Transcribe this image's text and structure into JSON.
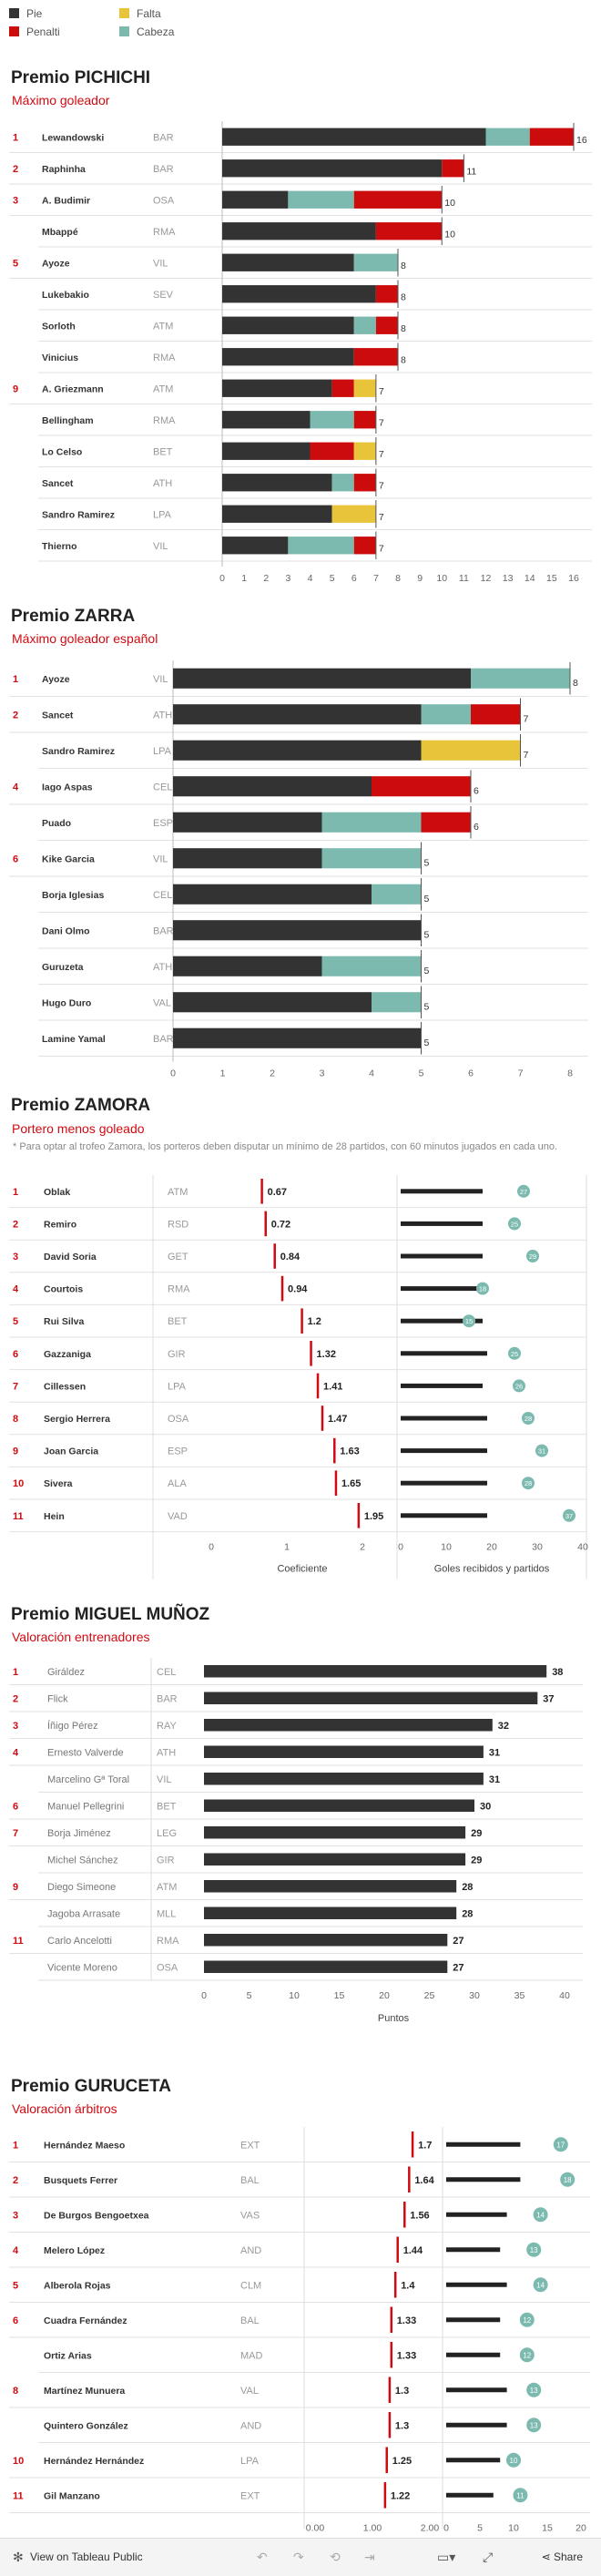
{
  "legend": {
    "items": [
      {
        "label": "Pie",
        "color": "#333333"
      },
      {
        "label": "Falta",
        "color": "#e8c43a"
      },
      {
        "label": "Penalti",
        "color": "#cc0c0c"
      },
      {
        "label": "Cabeza",
        "color": "#7cbab0"
      }
    ]
  },
  "colors": {
    "pie": "#333333",
    "falta": "#e8c43a",
    "penalti": "#cc0c0c",
    "cabeza": "#7cbab0",
    "accent": "#d10a11",
    "dot": "#7cbab0"
  },
  "pichichi": {
    "title": "Premio PICHICHI",
    "subtitle": "Máximo goleador"
  },
  "zarra": {
    "title": "Premio ZARRA",
    "subtitle": "Máximo goleador español"
  },
  "zamora": {
    "title": "Premio ZAMORA",
    "subtitle": "Portero menos goleado",
    "note": "* Para optar al trofeo Zamora, los porteros deben disputar un mínimo de 28 partidos, con 60 minutos jugados en cada uno."
  },
  "munoz": {
    "title": "Premio MIGUEL MUÑOZ",
    "subtitle": "Valoración entrenadores"
  },
  "guruceta": {
    "title": "Premio GURUCETA",
    "subtitle": "Valoración árbitros"
  },
  "footer": {
    "view_label": "View on Tableau Public",
    "share_label": "Share"
  },
  "chart_data": [
    {
      "id": "pichichi",
      "type": "bar",
      "stacked": true,
      "segments": [
        "Pie",
        "Cabeza",
        "Penalti",
        "Falta"
      ],
      "xlim": [
        0,
        16
      ],
      "xticks": [
        0,
        1,
        2,
        3,
        4,
        5,
        6,
        7,
        8,
        9,
        10,
        11,
        12,
        13,
        14,
        15,
        16
      ],
      "rows": [
        {
          "rank": "1",
          "name": "Lewandowski",
          "team": "BAR",
          "pie": 12,
          "cabeza": 2,
          "penalti": 2,
          "falta": 0,
          "total": 16
        },
        {
          "rank": "2",
          "name": "Raphinha",
          "team": "BAR",
          "pie": 10,
          "cabeza": 0,
          "penalti": 1,
          "falta": 0,
          "total": 11
        },
        {
          "rank": "3",
          "name": "A. Budimir",
          "team": "OSA",
          "pie": 3,
          "cabeza": 3,
          "penalti": 4,
          "falta": 0,
          "total": 10
        },
        {
          "rank": "",
          "name": "Mbappé",
          "team": "RMA",
          "pie": 7,
          "cabeza": 0,
          "penalti": 3,
          "falta": 0,
          "total": 10
        },
        {
          "rank": "5",
          "name": "Ayoze",
          "team": "VIL",
          "pie": 6,
          "cabeza": 2,
          "penalti": 0,
          "falta": 0,
          "total": 8
        },
        {
          "rank": "",
          "name": "Lukebakio",
          "team": "SEV",
          "pie": 7,
          "cabeza": 0,
          "penalti": 1,
          "falta": 0,
          "total": 8
        },
        {
          "rank": "",
          "name": "Sorloth",
          "team": "ATM",
          "pie": 6,
          "cabeza": 1,
          "penalti": 1,
          "falta": 0,
          "total": 8
        },
        {
          "rank": "",
          "name": "Vinicius",
          "team": "RMA",
          "pie": 6,
          "cabeza": 0,
          "penalti": 2,
          "falta": 0,
          "total": 8
        },
        {
          "rank": "9",
          "name": "A. Griezmann",
          "team": "ATM",
          "pie": 5,
          "cabeza": 0,
          "penalti": 1,
          "falta": 1,
          "total": 7
        },
        {
          "rank": "",
          "name": "Bellingham",
          "team": "RMA",
          "pie": 4,
          "cabeza": 2,
          "penalti": 1,
          "falta": 0,
          "total": 7
        },
        {
          "rank": "",
          "name": "Lo Celso",
          "team": "BET",
          "pie": 4,
          "cabeza": 0,
          "penalti": 2,
          "falta": 1,
          "total": 7
        },
        {
          "rank": "",
          "name": "Sancet",
          "team": "ATH",
          "pie": 5,
          "cabeza": 1,
          "penalti": 1,
          "falta": 0,
          "total": 7
        },
        {
          "rank": "",
          "name": "Sandro Ramirez",
          "team": "LPA",
          "pie": 5,
          "cabeza": 0,
          "penalti": 0,
          "falta": 2,
          "total": 7
        },
        {
          "rank": "",
          "name": "Thierno",
          "team": "VIL",
          "pie": 3,
          "cabeza": 3,
          "penalti": 1,
          "falta": 0,
          "total": 7
        }
      ]
    },
    {
      "id": "zarra",
      "type": "bar",
      "stacked": true,
      "segments": [
        "Pie",
        "Cabeza",
        "Penalti",
        "Falta"
      ],
      "xlim": [
        0,
        8
      ],
      "xticks": [
        0,
        1,
        2,
        3,
        4,
        5,
        6,
        7,
        8
      ],
      "rows": [
        {
          "rank": "1",
          "name": "Ayoze",
          "team": "VIL",
          "pie": 6,
          "cabeza": 2,
          "penalti": 0,
          "falta": 0,
          "total": 8
        },
        {
          "rank": "2",
          "name": "Sancet",
          "team": "ATH",
          "pie": 5,
          "cabeza": 1,
          "penalti": 1,
          "falta": 0,
          "total": 7
        },
        {
          "rank": "",
          "name": "Sandro Ramirez",
          "team": "LPA",
          "pie": 5,
          "cabeza": 0,
          "penalti": 0,
          "falta": 2,
          "total": 7
        },
        {
          "rank": "4",
          "name": "Iago Aspas",
          "team": "CEL",
          "pie": 4,
          "cabeza": 0,
          "penalti": 2,
          "falta": 0,
          "total": 6
        },
        {
          "rank": "",
          "name": "Puado",
          "team": "ESP",
          "pie": 3,
          "cabeza": 2,
          "penalti": 1,
          "falta": 0,
          "total": 6
        },
        {
          "rank": "6",
          "name": "Kike Garcia",
          "team": "VIL",
          "pie": 3,
          "cabeza": 2,
          "penalti": 0,
          "falta": 0,
          "total": 5
        },
        {
          "rank": "",
          "name": "Borja Iglesias",
          "team": "CEL",
          "pie": 4,
          "cabeza": 1,
          "penalti": 0,
          "falta": 0,
          "total": 5
        },
        {
          "rank": "",
          "name": "Dani Olmo",
          "team": "BAR",
          "pie": 5,
          "cabeza": 0,
          "penalti": 0,
          "falta": 0,
          "total": 5
        },
        {
          "rank": "",
          "name": "Guruzeta",
          "team": "ATH",
          "pie": 3,
          "cabeza": 2,
          "penalti": 0,
          "falta": 0,
          "total": 5
        },
        {
          "rank": "",
          "name": "Hugo Duro",
          "team": "VAL",
          "pie": 4,
          "cabeza": 1,
          "penalti": 0,
          "falta": 0,
          "total": 5
        },
        {
          "rank": "",
          "name": "Lamine Yamal",
          "team": "BAR",
          "pie": 5,
          "cabeza": 0,
          "penalti": 0,
          "falta": 0,
          "total": 5
        }
      ]
    },
    {
      "id": "zamora",
      "type": "scatter",
      "xlabel": "Coeficiente",
      "xlim": [
        0,
        2
      ],
      "xticks": [
        "0",
        "1",
        "2"
      ],
      "xlabel2": "Goles recibidos y partidos",
      "xlim2": [
        0,
        40
      ],
      "xticks2": [
        0,
        10,
        20,
        30,
        40
      ],
      "rows": [
        {
          "rank": "1",
          "name": "Oblak",
          "team": "ATM",
          "coef": 0.67,
          "coef_label": "0.67",
          "goals": 18,
          "matches": 27
        },
        {
          "rank": "2",
          "name": "Remiro",
          "team": "RSD",
          "coef": 0.72,
          "coef_label": "0.72",
          "goals": 18,
          "matches": 25
        },
        {
          "rank": "3",
          "name": "David Soria",
          "team": "GET",
          "coef": 0.84,
          "coef_label": "0.84",
          "goals": 18,
          "matches": 29
        },
        {
          "rank": "4",
          "name": "Courtois",
          "team": "RMA",
          "coef": 0.94,
          "coef_label": "0.94",
          "goals": 17,
          "matches": 18
        },
        {
          "rank": "5",
          "name": "Rui Silva",
          "team": "BET",
          "coef": 1.2,
          "coef_label": "1.2",
          "goals": 18,
          "matches": 15
        },
        {
          "rank": "6",
          "name": "Gazzaniga",
          "team": "GIR",
          "coef": 1.32,
          "coef_label": "1.32",
          "goals": 19,
          "matches": 25
        },
        {
          "rank": "7",
          "name": "Cillessen",
          "team": "LPA",
          "coef": 1.41,
          "coef_label": "1.41",
          "goals": 18,
          "matches": 26
        },
        {
          "rank": "8",
          "name": "Sergio Herrera",
          "team": "OSA",
          "coef": 1.47,
          "coef_label": "1.47",
          "goals": 19,
          "matches": 28
        },
        {
          "rank": "9",
          "name": "Joan Garcia",
          "team": "ESP",
          "coef": 1.63,
          "coef_label": "1.63",
          "goals": 19,
          "matches": 31
        },
        {
          "rank": "10",
          "name": "Sivera",
          "team": "ALA",
          "coef": 1.65,
          "coef_label": "1.65",
          "goals": 19,
          "matches": 28
        },
        {
          "rank": "11",
          "name": "Hein",
          "team": "VAD",
          "coef": 1.95,
          "coef_label": "1.95",
          "goals": 19,
          "matches": 37
        }
      ]
    },
    {
      "id": "munoz",
      "type": "bar",
      "xlabel": "Puntos",
      "xlim": [
        0,
        40
      ],
      "xticks": [
        0,
        5,
        10,
        15,
        20,
        25,
        30,
        35,
        40
      ],
      "rows": [
        {
          "rank": "1",
          "name": "Giráldez",
          "team": "CEL",
          "value": 38
        },
        {
          "rank": "2",
          "name": "Flick",
          "team": "BAR",
          "value": 37
        },
        {
          "rank": "3",
          "name": "Íñigo Pérez",
          "team": "RAY",
          "value": 32
        },
        {
          "rank": "4",
          "name": "Ernesto Valverde",
          "team": "ATH",
          "value": 31
        },
        {
          "rank": "",
          "name": "Marcelino Gª Toral",
          "team": "VIL",
          "value": 31
        },
        {
          "rank": "6",
          "name": "Manuel Pellegrini",
          "team": "BET",
          "value": 30
        },
        {
          "rank": "7",
          "name": "Borja Jiménez",
          "team": "LEG",
          "value": 29
        },
        {
          "rank": "",
          "name": "Michel Sánchez",
          "team": "GIR",
          "value": 29
        },
        {
          "rank": "9",
          "name": "Diego Simeone",
          "team": "ATM",
          "value": 28
        },
        {
          "rank": "",
          "name": "Jagoba Arrasate",
          "team": "MLL",
          "value": 28
        },
        {
          "rank": "11",
          "name": "Carlo Ancelotti",
          "team": "RMA",
          "value": 27
        },
        {
          "rank": "",
          "name": "Vicente Moreno",
          "team": "OSA",
          "value": 27
        }
      ]
    },
    {
      "id": "guruceta",
      "type": "scatter",
      "xlim": [
        0,
        2
      ],
      "xticks": [
        "0.00",
        "1.00",
        "2.00"
      ],
      "xlim2": [
        0,
        20
      ],
      "xticks2": [
        0,
        5,
        10,
        15,
        20
      ],
      "rows": [
        {
          "rank": "1",
          "name": "Hernández Maeso",
          "team": "EXT",
          "value": 1.7,
          "value_label": "1.7",
          "bar": 11,
          "count": 17
        },
        {
          "rank": "2",
          "name": "Busquets Ferrer",
          "team": "BAL",
          "value": 1.64,
          "value_label": "1.64",
          "bar": 11,
          "count": 18
        },
        {
          "rank": "3",
          "name": "De Burgos Bengoetxea",
          "team": "VAS",
          "value": 1.56,
          "value_label": "1.56",
          "bar": 9,
          "count": 14
        },
        {
          "rank": "4",
          "name": "Melero López",
          "team": "AND",
          "value": 1.44,
          "value_label": "1.44",
          "bar": 8,
          "count": 13
        },
        {
          "rank": "5",
          "name": "Alberola Rojas",
          "team": "CLM",
          "value": 1.4,
          "value_label": "1.4",
          "bar": 9,
          "count": 14
        },
        {
          "rank": "6",
          "name": "Cuadra Fernández",
          "team": "BAL",
          "value": 1.33,
          "value_label": "1.33",
          "bar": 8,
          "count": 12
        },
        {
          "rank": "",
          "name": "Ortiz Arias",
          "team": "MAD",
          "value": 1.33,
          "value_label": "1.33",
          "bar": 8,
          "count": 12
        },
        {
          "rank": "8",
          "name": "Martínez Munuera",
          "team": "VAL",
          "value": 1.3,
          "value_label": "1.3",
          "bar": 9,
          "count": 13
        },
        {
          "rank": "",
          "name": "Quintero González",
          "team": "AND",
          "value": 1.3,
          "value_label": "1.3",
          "bar": 9,
          "count": 13
        },
        {
          "rank": "10",
          "name": "Hernández Hernández",
          "team": "LPA",
          "value": 1.25,
          "value_label": "1.25",
          "bar": 8,
          "count": 10
        },
        {
          "rank": "11",
          "name": "Gil Manzano",
          "team": "EXT",
          "value": 1.22,
          "value_label": "1.22",
          "bar": 7,
          "count": 11
        }
      ]
    }
  ]
}
